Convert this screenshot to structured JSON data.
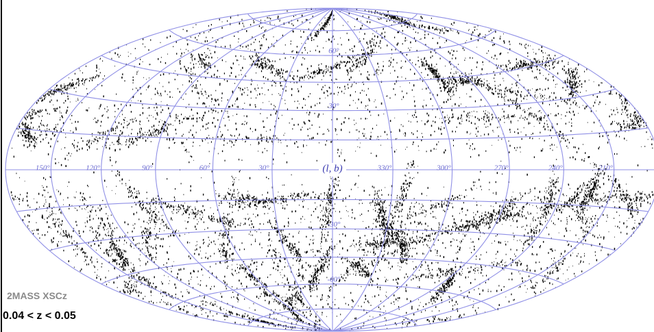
{
  "map": {
    "center_label": "(l, b)",
    "longitude_labels": [
      "150°",
      "120°",
      "90°",
      "60°",
      "30°",
      "330°",
      "300°",
      "270°",
      "240°",
      "210°"
    ],
    "latitude_labels": [
      "60°",
      "30°",
      "-30°",
      "-60°"
    ],
    "survey": "2MASS XSCz",
    "redshift_range": "0.04 < z < 0.05"
  }
}
